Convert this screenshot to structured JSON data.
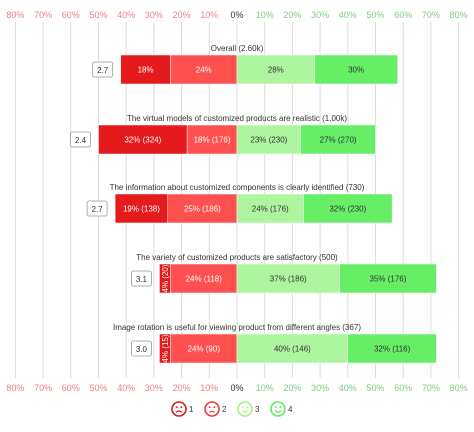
{
  "chart_data": {
    "type": "bar",
    "subtype": "diverging-stacked-likert",
    "x_ticks": [
      "80%",
      "70%",
      "60%",
      "50%",
      "40%",
      "30%",
      "20%",
      "10%",
      "0%",
      "10%",
      "20%",
      "30%",
      "40%",
      "50%",
      "60%",
      "70%",
      "80%"
    ],
    "x_range": [
      -80,
      80
    ],
    "grid": true,
    "legend_position": "bottom",
    "legend": [
      {
        "key": "1",
        "icon": "very-sad-face-icon",
        "color": "#d7191c"
      },
      {
        "key": "2",
        "icon": "sad-face-icon",
        "color": "#f03a3a"
      },
      {
        "key": "3",
        "icon": "smile-face-icon",
        "color": "#a6f08a"
      },
      {
        "key": "4",
        "icon": "happy-face-icon",
        "color": "#5fea5f"
      }
    ],
    "colors": {
      "1": "#e41a1c",
      "2": "#ff5050",
      "3": "#aef5a0",
      "4": "#66ee66",
      "negative_tick": "#f08080",
      "positive_tick": "#80cc80",
      "neutral_tick": "#333333"
    },
    "items": [
      {
        "label": "Overall (2.60k)",
        "mean": "2.7",
        "values": [
          18,
          24,
          28,
          30
        ],
        "segment_labels": [
          "18%",
          "24%",
          "28%",
          "30%"
        ]
      },
      {
        "label": "The virtual models of customized products are realistic (1.00k)",
        "mean": "2.4",
        "values": [
          32,
          18,
          23,
          27
        ],
        "segment_labels": [
          "32% (324)",
          "18% (176)",
          "23% (230)",
          "27% (270)"
        ]
      },
      {
        "label": "The information about customized components is clearly identified (730)",
        "mean": "2.7",
        "values": [
          19,
          25,
          24,
          32
        ],
        "segment_labels": [
          "19% (138)",
          "25% (186)",
          "24% (176)",
          "32% (230)"
        ]
      },
      {
        "label": "The variety of customized products are satisfactory (500)",
        "mean": "3.1",
        "values": [
          4,
          24,
          37,
          35
        ],
        "segment_labels": [
          "4% (20)",
          "24% (118)",
          "37% (186)",
          "35% (176)"
        ]
      },
      {
        "label": "Image rotation is useful for viewing product from different angles (367)",
        "mean": "3.0",
        "values": [
          4,
          24,
          40,
          32
        ],
        "segment_labels": [
          "4% (15)",
          "24% (90)",
          "40% (146)",
          "32% (116)"
        ]
      }
    ]
  }
}
